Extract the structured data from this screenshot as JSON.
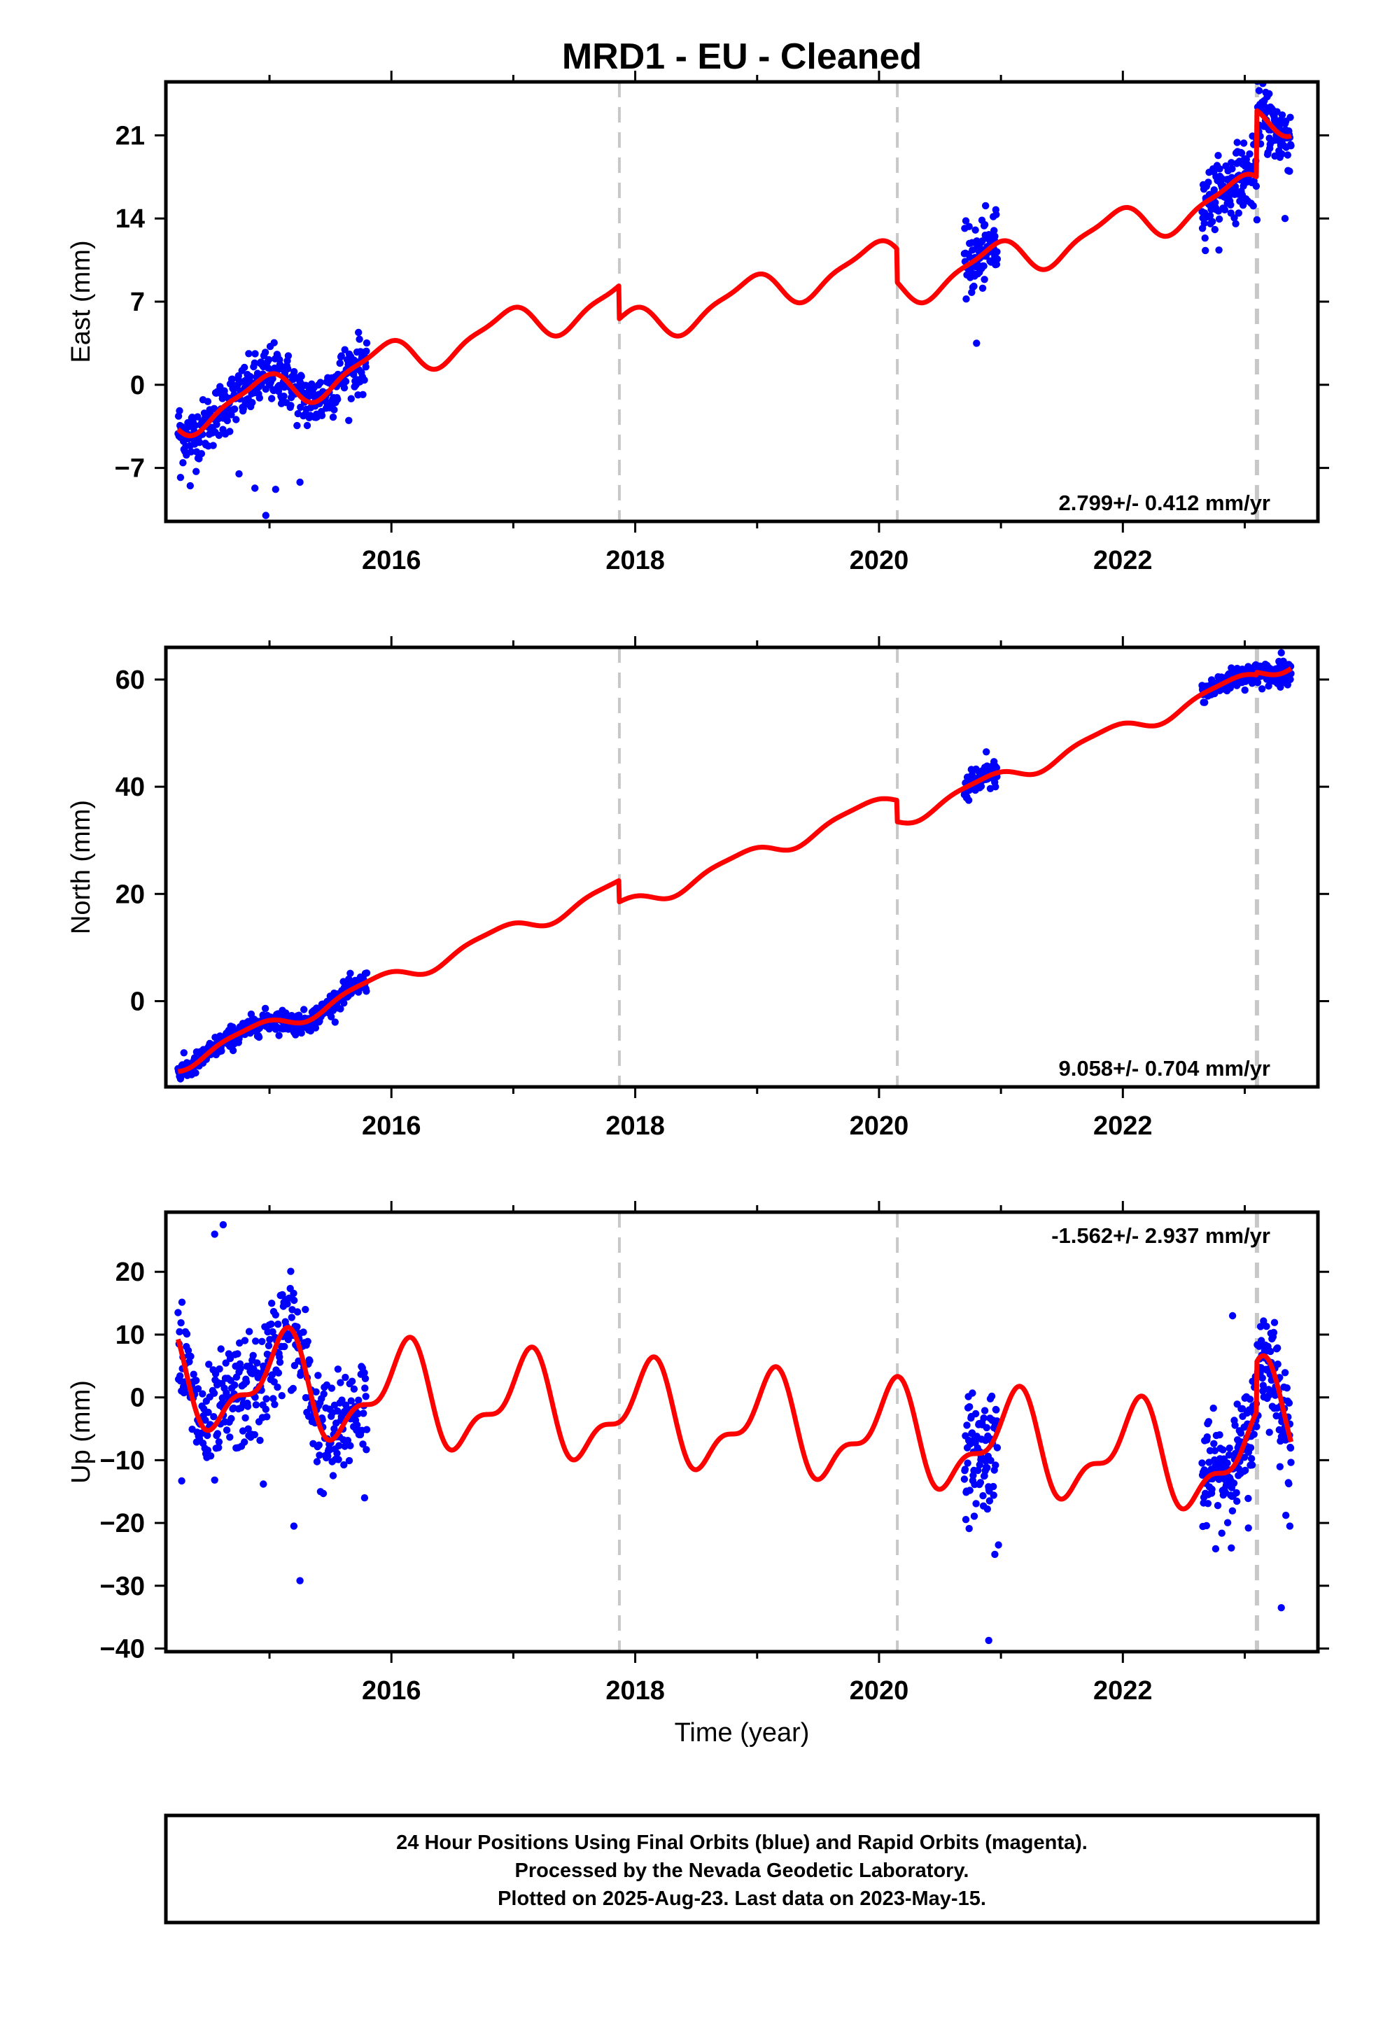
{
  "title": "MRD1  - EU - Cleaned",
  "x_axis_label": "Time (year)",
  "footer": {
    "lines": [
      "24 Hour Positions Using Final Orbits (blue) and Rapid Orbits (magenta).",
      "Processed by the Nevada Geodetic Laboratory.",
      "Plotted on 2025-Aug-23. Last data on 2023-May-15."
    ]
  },
  "colors": {
    "data_points": "#0000ff",
    "model_curve": "#ff0000",
    "event_lines": "#c8c8c8",
    "frame": "#000000"
  },
  "chart_data": [
    {
      "type": "scatter",
      "panel": "east",
      "ylabel": "East (mm)",
      "rate_text": "2.799+/- 0.412 mm/yr",
      "xlim": [
        2014.15,
        2023.6
      ],
      "ylim": [
        -11.5,
        25.5
      ],
      "yticks": [
        -7,
        0,
        7,
        14,
        21
      ],
      "xticks": [
        2016,
        2018,
        2020,
        2022
      ],
      "event_lines": [
        2017.87,
        2020.15,
        2023.1
      ],
      "model": {
        "base": -2.8,
        "rate": 2.799,
        "t0": 2014.25,
        "annual_amp": 1.5,
        "annual_phase": 2.05,
        "semi_amp": 0.45,
        "semi_phase": 0.6,
        "offsets": [
          {
            "t": 2017.87,
            "d": -2.8
          },
          {
            "t": 2020.15,
            "d": -2.8
          },
          {
            "t": 2023.1,
            "d": 5.6
          }
        ]
      },
      "data_segments": [
        {
          "start": 2014.25,
          "end": 2015.8,
          "step": 0.004,
          "noise": 1.2
        },
        {
          "start": 2020.7,
          "end": 2020.97,
          "step": 0.003,
          "noise": 1.4
        },
        {
          "start": 2022.65,
          "end": 2023.38,
          "step": 0.003,
          "noise": 1.4
        }
      ],
      "outliers": [
        [
          2014.35,
          -8.5
        ],
        [
          2014.75,
          -7.5
        ],
        [
          2014.88,
          -8.7
        ],
        [
          2014.97,
          -11.0
        ],
        [
          2015.05,
          -8.8
        ],
        [
          2015.25,
          -8.2
        ],
        [
          2014.27,
          -7.8
        ],
        [
          2020.8,
          3.5
        ],
        [
          2020.95,
          12.5
        ],
        [
          2022.8,
          17.0
        ],
        [
          2023.2,
          24.5
        ],
        [
          2023.33,
          14.0
        ]
      ]
    },
    {
      "type": "scatter",
      "panel": "north",
      "ylabel": "North (mm)",
      "rate_text": "9.058+/- 0.704 mm/yr",
      "xlim": [
        2014.15,
        2023.6
      ],
      "ylim": [
        -16,
        66
      ],
      "yticks": [
        0,
        20,
        40,
        60
      ],
      "xticks": [
        2016,
        2018,
        2020,
        2022
      ],
      "event_lines": [
        2017.87,
        2020.15,
        2023.1
      ],
      "model": {
        "base": -11.5,
        "rate": 9.058,
        "t0": 2014.25,
        "annual_amp": 1.5,
        "annual_phase": 2.6,
        "semi_amp": 0.4,
        "semi_phase": 1.0,
        "offsets": [
          {
            "t": 2017.87,
            "d": -4.0
          },
          {
            "t": 2020.15,
            "d": -4.0
          },
          {
            "t": 2023.1,
            "d": 0.5
          }
        ]
      },
      "data_segments": [
        {
          "start": 2014.25,
          "end": 2015.8,
          "step": 0.004,
          "noise": 1.0
        },
        {
          "start": 2020.7,
          "end": 2020.97,
          "step": 0.003,
          "noise": 1.2
        },
        {
          "start": 2022.65,
          "end": 2023.38,
          "step": 0.003,
          "noise": 1.0
        }
      ],
      "outliers": [
        [
          2014.27,
          -14.5
        ],
        [
          2014.3,
          -13.5
        ],
        [
          2020.88,
          46.5
        ],
        [
          2023.3,
          65.0
        ]
      ]
    },
    {
      "type": "scatter",
      "panel": "up",
      "ylabel": "Up (mm)",
      "rate_text": "-1.562+/- 2.937 mm/yr",
      "xlim": [
        2014.15,
        2023.6
      ],
      "ylim": [
        -40.5,
        29.5
      ],
      "yticks": [
        -40,
        -30,
        -20,
        -10,
        0,
        10,
        20
      ],
      "xticks": [
        2016,
        2018,
        2020,
        2022
      ],
      "event_lines": [
        2017.87,
        2020.15,
        2023.1
      ],
      "model": {
        "base": 3.0,
        "rate": -1.562,
        "t0": 2014.25,
        "annual_amp": 7.0,
        "annual_phase": 0.95,
        "semi_amp": 3.2,
        "semi_phase": -0.75,
        "offsets": [
          {
            "t": 2017.87,
            "d": 0.0
          },
          {
            "t": 2020.15,
            "d": 0.0
          },
          {
            "t": 2023.1,
            "d": 8.0
          }
        ]
      },
      "data_segments": [
        {
          "start": 2014.25,
          "end": 2015.8,
          "step": 0.004,
          "noise": 4.5
        },
        {
          "start": 2020.7,
          "end": 2020.97,
          "step": 0.003,
          "noise": 4.5
        },
        {
          "start": 2022.65,
          "end": 2023.38,
          "step": 0.003,
          "noise": 4.0
        }
      ],
      "outliers": [
        [
          2014.28,
          -13.3
        ],
        [
          2014.62,
          27.5
        ],
        [
          2014.55,
          26.0
        ],
        [
          2015.25,
          -29.2
        ],
        [
          2015.2,
          -20.5
        ],
        [
          2014.95,
          -13.8
        ],
        [
          2015.78,
          -16.0
        ],
        [
          2020.9,
          -38.7
        ],
        [
          2020.95,
          -25.0
        ],
        [
          2020.98,
          -23.5
        ],
        [
          2022.9,
          13.0
        ],
        [
          2023.03,
          -20.8
        ],
        [
          2023.3,
          -33.5
        ],
        [
          2023.37,
          -20.5
        ]
      ]
    }
  ]
}
